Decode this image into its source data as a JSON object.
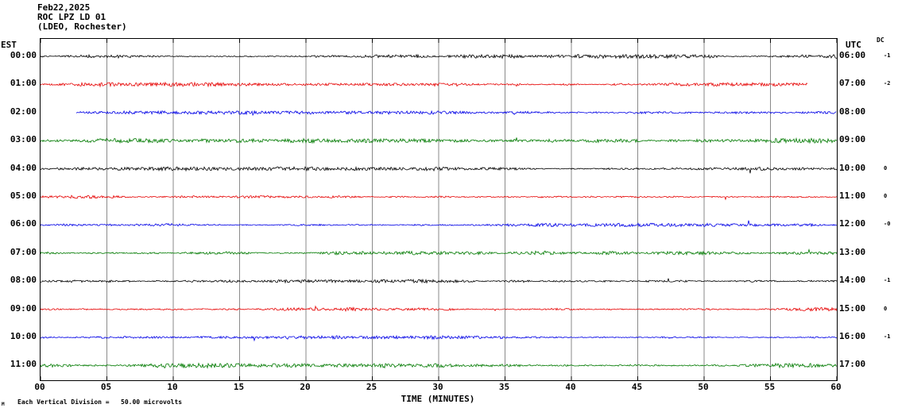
{
  "header": {
    "date": "Feb22,2025",
    "station": "ROC LPZ LD 01",
    "location": "(LDEO, Rochester)"
  },
  "axes": {
    "left_label": "EST",
    "right_label": "UTC",
    "dc_label": "DC",
    "x_title": "TIME (MINUTES)",
    "x_ticks": [
      "00",
      "05",
      "10",
      "15",
      "20",
      "25",
      "30",
      "35",
      "40",
      "45",
      "50",
      "55",
      "60"
    ]
  },
  "footer": {
    "mark": "M",
    "scale_note": "Each Vertical Division =   50.00 microvolts"
  },
  "chart_data": {
    "type": "line",
    "subtype": "helicorder-seismogram",
    "title": "ROC LPZ LD 01 (LDEO, Rochester) Feb22,2025",
    "xlabel": "TIME (MINUTES)",
    "x_range_minutes": [
      0,
      60
    ],
    "minutes_per_row": 60,
    "tick_interval_minutes": 5,
    "vertical_division_microvolts": 50.0,
    "grid": true,
    "rows": [
      {
        "est": "00:00",
        "utc": "06:00",
        "dc": "-1",
        "color": "#000000",
        "start_min": 0,
        "end_min": 60,
        "amp": 1.15,
        "seed": 101
      },
      {
        "est": "01:00",
        "utc": "07:00",
        "dc": "-2",
        "color": "#e60000",
        "start_min": 0,
        "end_min": 57.8,
        "amp": 1.2,
        "seed": 202
      },
      {
        "est": "02:00",
        "utc": "08:00",
        "dc": "",
        "color": "#0000e6",
        "start_min": 2.7,
        "end_min": 60,
        "amp": 1.0,
        "seed": 303
      },
      {
        "est": "03:00",
        "utc": "09:00",
        "dc": "",
        "color": "#007a00",
        "start_min": 0,
        "end_min": 60,
        "amp": 1.5,
        "seed": 404
      },
      {
        "est": "04:00",
        "utc": "10:00",
        "dc": "0",
        "color": "#000000",
        "start_min": 0,
        "end_min": 60,
        "amp": 1.1,
        "seed": 505
      },
      {
        "est": "05:00",
        "utc": "11:00",
        "dc": "0",
        "color": "#e60000",
        "start_min": 0,
        "end_min": 60,
        "amp": 1.25,
        "seed": 606
      },
      {
        "est": "06:00",
        "utc": "12:00",
        "dc": "-0",
        "color": "#0000e6",
        "start_min": 0,
        "end_min": 60,
        "amp": 1.05,
        "seed": 707
      },
      {
        "est": "07:00",
        "utc": "13:00",
        "dc": "",
        "color": "#007a00",
        "start_min": 0,
        "end_min": 60,
        "amp": 1.45,
        "seed": 808
      },
      {
        "est": "08:00",
        "utc": "14:00",
        "dc": "-1",
        "color": "#000000",
        "start_min": 0,
        "end_min": 60,
        "amp": 1.15,
        "seed": 909
      },
      {
        "est": "09:00",
        "utc": "15:00",
        "dc": "0",
        "color": "#e60000",
        "start_min": 0,
        "end_min": 60,
        "amp": 1.2,
        "seed": 1010
      },
      {
        "est": "10:00",
        "utc": "16:00",
        "dc": "-1",
        "color": "#0000e6",
        "start_min": 0,
        "end_min": 60,
        "amp": 1.0,
        "seed": 1111
      },
      {
        "est": "11:00",
        "utc": "17:00",
        "dc": "",
        "color": "#007a00",
        "start_min": 0,
        "end_min": 60,
        "amp": 1.5,
        "seed": 1212
      }
    ]
  }
}
